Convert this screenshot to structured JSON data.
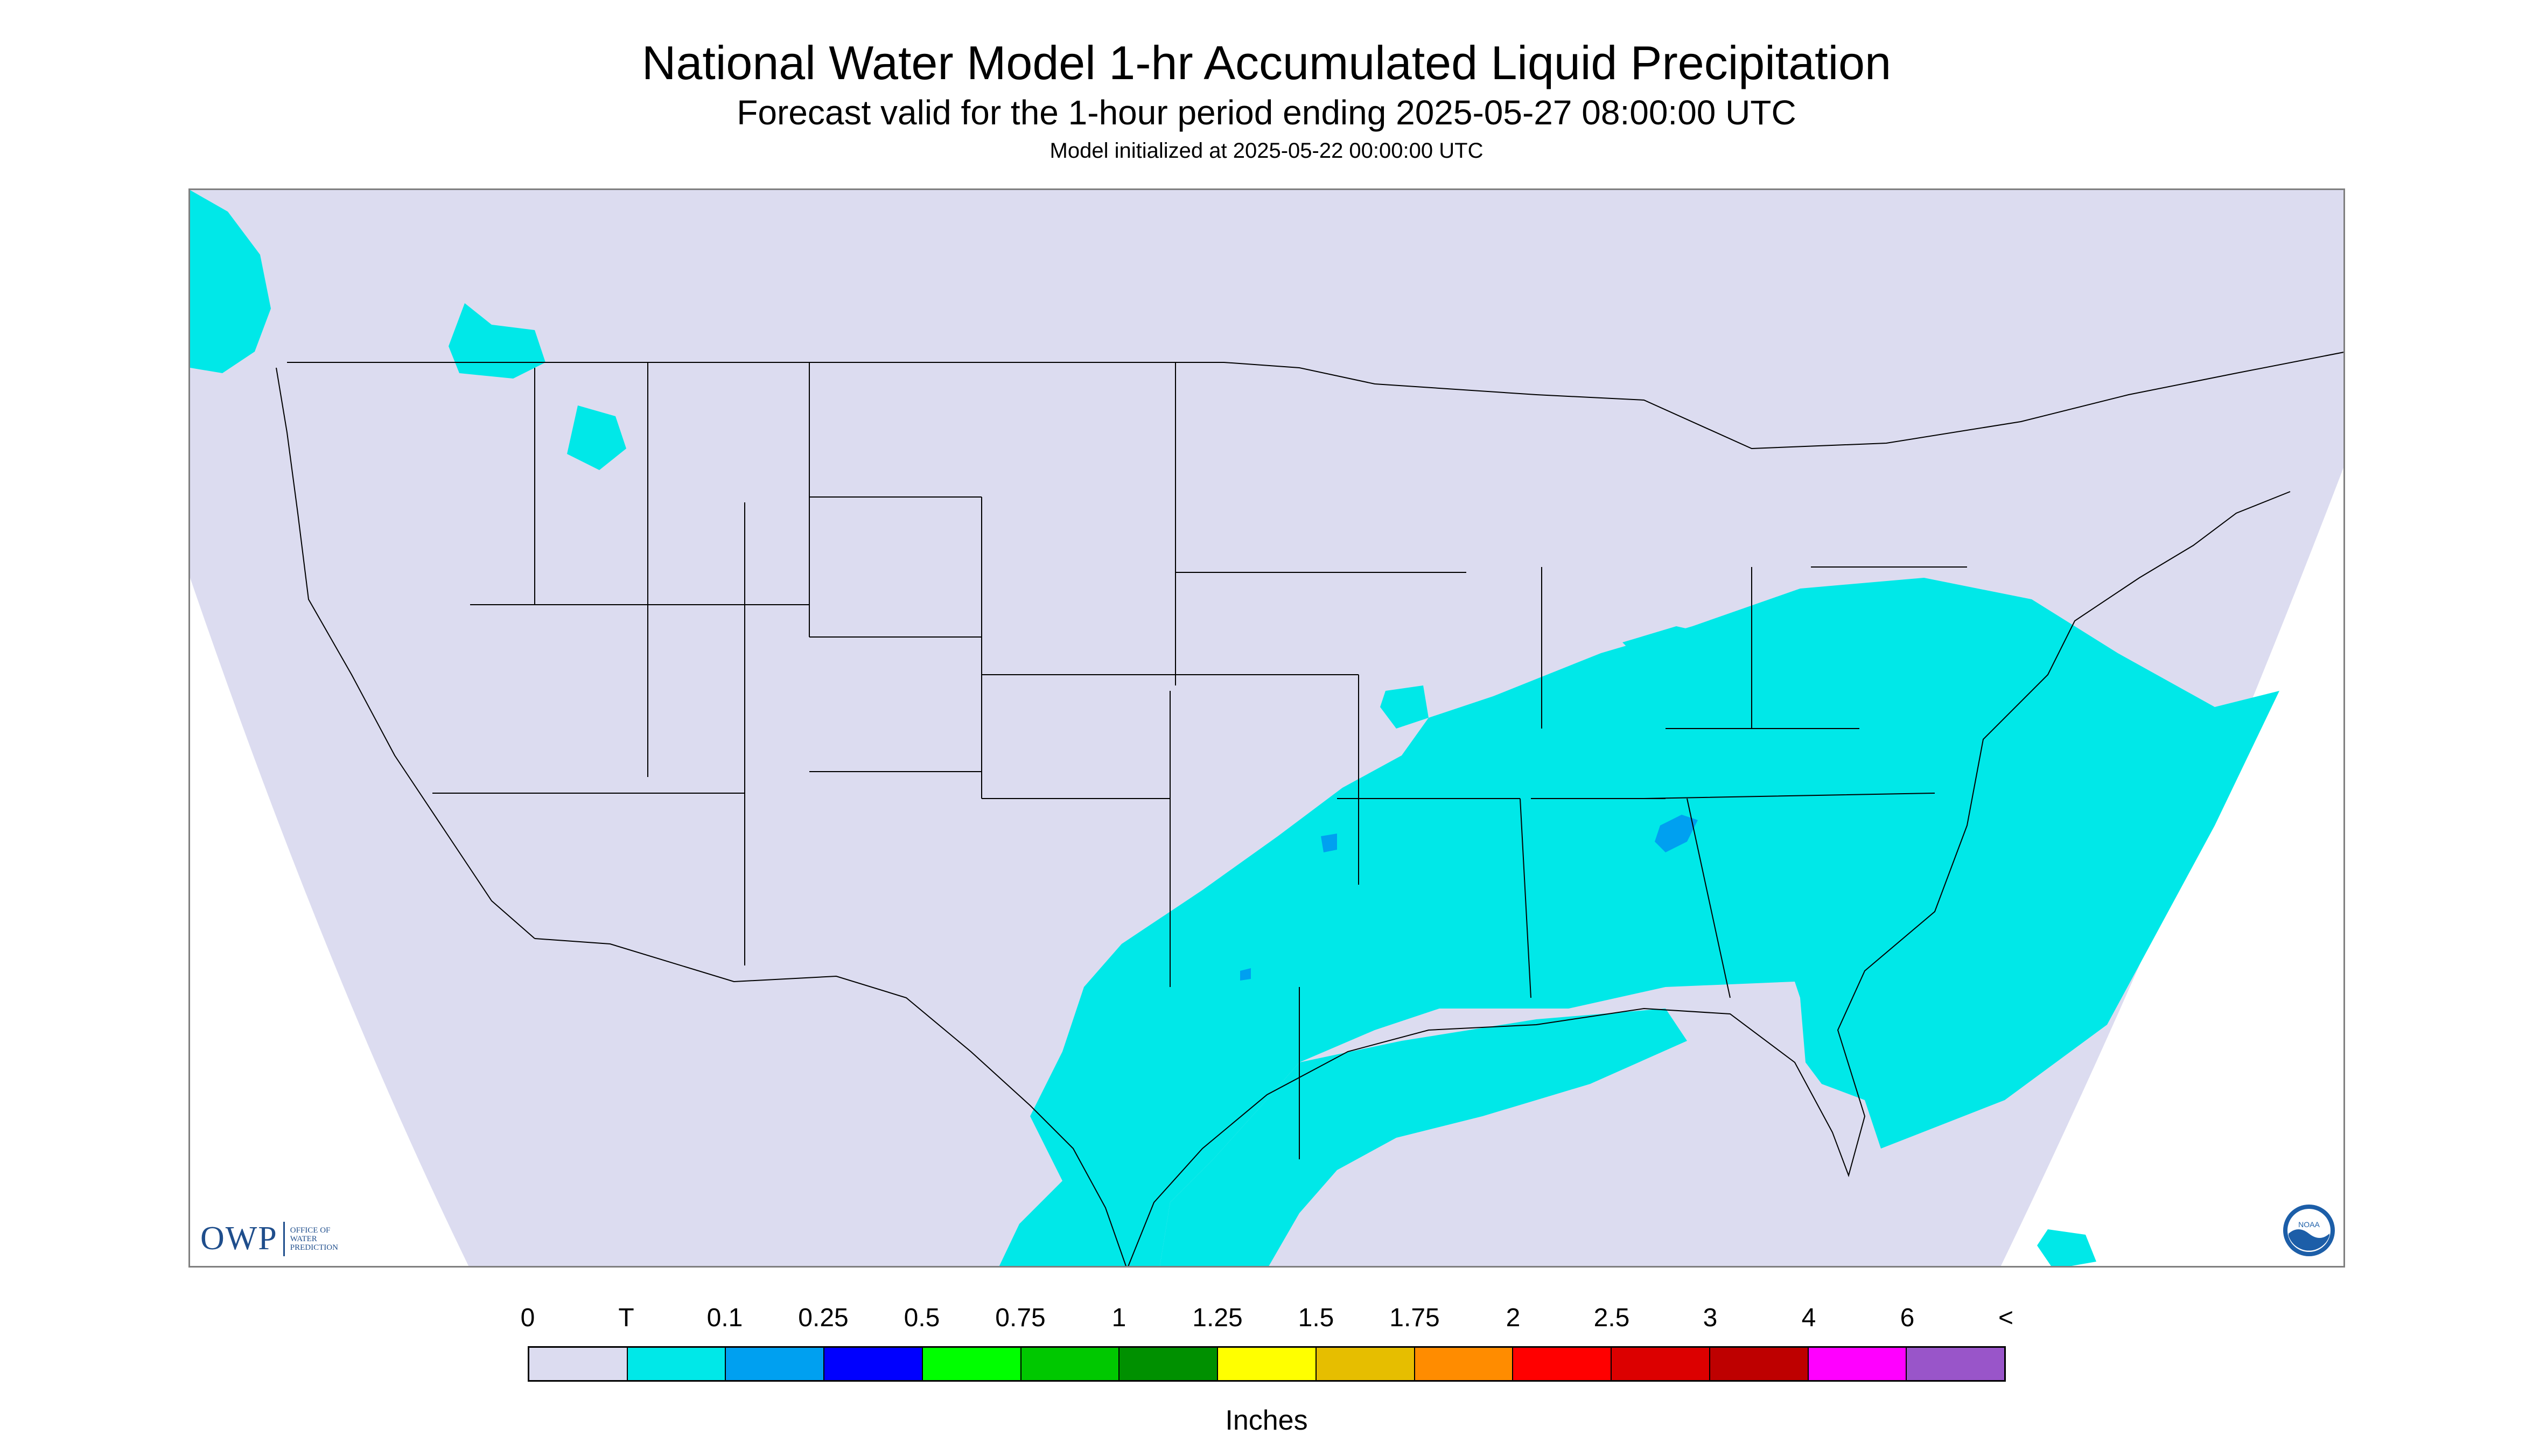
{
  "title": "National Water Model 1-hr Accumulated Liquid Precipitation",
  "subtitle": "Forecast valid for the 1-hour period ending 2025-05-27 08:00:00 UTC",
  "init_line": "Model initialized at 2025-05-22 00:00:00 UTC",
  "logos": {
    "owp_mark": "OWP",
    "owp_text": "OFFICE OF WATER PREDICTION",
    "noaa_text": "NOAA"
  },
  "legend": {
    "units": "Inches",
    "tick_labels": [
      "0",
      "T",
      "0.1",
      "0.25",
      "0.5",
      "0.75",
      "1",
      "1.25",
      "1.5",
      "1.75",
      "2",
      "2.5",
      "3",
      "4",
      "6",
      "<"
    ],
    "colors": [
      "#dcdcf0",
      "#00e8e8",
      "#00a0f0",
      "#0000ff",
      "#00ff00",
      "#00c800",
      "#009000",
      "#ffff00",
      "#e6be00",
      "#ff8c00",
      "#ff0000",
      "#dc0000",
      "#be0000",
      "#ff00ff",
      "#9955c9"
    ]
  },
  "map": {
    "background": "#dcdcf0",
    "precip_color": "#00e8e8",
    "heavy_precip_color": "#00a0f0",
    "boundary_color": "#000000"
  }
}
